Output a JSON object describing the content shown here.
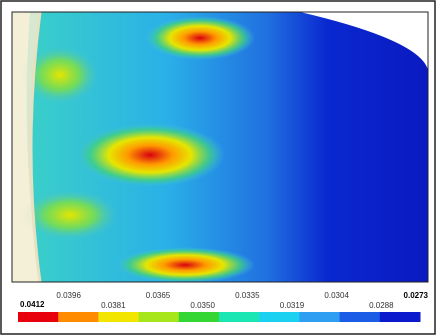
{
  "legend": {
    "labels": [
      "0.0412",
      "0.0396",
      "0.0381",
      "0.0365",
      "0.0350",
      "0.0335",
      "0.0319",
      "0.0304",
      "0.0288",
      "0.0273"
    ],
    "colors": [
      "#e8000c",
      "#ff8c00",
      "#f2e600",
      "#a6e61a",
      "#33d633",
      "#1ae6b3",
      "#1ad1f2",
      "#2e9ef2",
      "#1a5ce6",
      "#0a1acc"
    ]
  }
}
